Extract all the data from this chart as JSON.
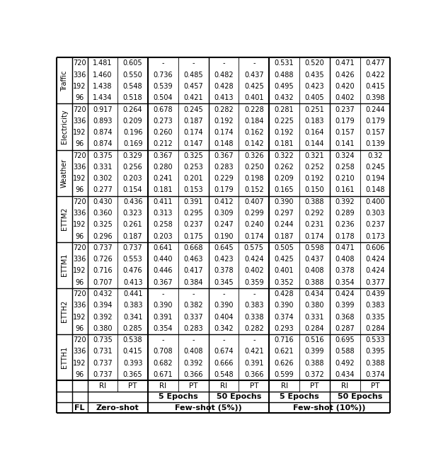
{
  "row_groups": [
    {
      "label": "ETTH1",
      "rows": [
        {
          "fl": "96",
          "zs_ri": "0.737",
          "zs_pt": "0.365",
          "fs5_5e_ri": "0.671",
          "fs5_5e_pt": "0.366",
          "fs5_50e_ri": "0.548",
          "fs5_50e_pt": "0.366",
          "fs10_5e_ri": "0.599",
          "fs10_5e_pt": "0.372",
          "fs10_50e_ri": "0.434",
          "fs10_50e_pt": "0.374"
        },
        {
          "fl": "192",
          "zs_ri": "0.737",
          "zs_pt": "0.393",
          "fs5_5e_ri": "0.682",
          "fs5_5e_pt": "0.392",
          "fs5_50e_ri": "0.666",
          "fs5_50e_pt": "0.391",
          "fs10_5e_ri": "0.626",
          "fs10_5e_pt": "0.388",
          "fs10_50e_ri": "0.492",
          "fs10_50e_pt": "0.388"
        },
        {
          "fl": "336",
          "zs_ri": "0.731",
          "zs_pt": "0.415",
          "fs5_5e_ri": "0.708",
          "fs5_5e_pt": "0.408",
          "fs5_50e_ri": "0.674",
          "fs5_50e_pt": "0.421",
          "fs10_5e_ri": "0.621",
          "fs10_5e_pt": "0.399",
          "fs10_50e_ri": "0.588",
          "fs10_50e_pt": "0.395"
        },
        {
          "fl": "720",
          "zs_ri": "0.735",
          "zs_pt": "0.538",
          "fs5_5e_ri": "-",
          "fs5_5e_pt": "-",
          "fs5_50e_ri": "-",
          "fs5_50e_pt": "-",
          "fs10_5e_ri": "0.716",
          "fs10_5e_pt": "0.516",
          "fs10_50e_ri": "0.695",
          "fs10_50e_pt": "0.533"
        }
      ]
    },
    {
      "label": "ETTH2",
      "rows": [
        {
          "fl": "96",
          "zs_ri": "0.380",
          "zs_pt": "0.285",
          "fs5_5e_ri": "0.354",
          "fs5_5e_pt": "0.283",
          "fs5_50e_ri": "0.342",
          "fs5_50e_pt": "0.282",
          "fs10_5e_ri": "0.293",
          "fs10_5e_pt": "0.284",
          "fs10_50e_ri": "0.287",
          "fs10_50e_pt": "0.284"
        },
        {
          "fl": "192",
          "zs_ri": "0.392",
          "zs_pt": "0.341",
          "fs5_5e_ri": "0.391",
          "fs5_5e_pt": "0.337",
          "fs5_50e_ri": "0.404",
          "fs5_50e_pt": "0.338",
          "fs10_5e_ri": "0.374",
          "fs10_5e_pt": "0.331",
          "fs10_50e_ri": "0.368",
          "fs10_50e_pt": "0.335"
        },
        {
          "fl": "336",
          "zs_ri": "0.394",
          "zs_pt": "0.383",
          "fs5_5e_ri": "0.390",
          "fs5_5e_pt": "0.382",
          "fs5_50e_ri": "0.390",
          "fs5_50e_pt": "0.383",
          "fs10_5e_ri": "0.390",
          "fs10_5e_pt": "0.380",
          "fs10_50e_ri": "0.399",
          "fs10_50e_pt": "0.383"
        },
        {
          "fl": "720",
          "zs_ri": "0.432",
          "zs_pt": "0.441",
          "fs5_5e_ri": "-",
          "fs5_5e_pt": "-",
          "fs5_50e_ri": "-",
          "fs5_50e_pt": "-",
          "fs10_5e_ri": "0.428",
          "fs10_5e_pt": "0.434",
          "fs10_50e_ri": "0.424",
          "fs10_50e_pt": "0.439"
        }
      ]
    },
    {
      "label": "ETTM1",
      "rows": [
        {
          "fl": "96",
          "zs_ri": "0.707",
          "zs_pt": "0.413",
          "fs5_5e_ri": "0.367",
          "fs5_5e_pt": "0.384",
          "fs5_50e_ri": "0.345",
          "fs5_50e_pt": "0.359",
          "fs10_5e_ri": "0.352",
          "fs10_5e_pt": "0.388",
          "fs10_50e_ri": "0.354",
          "fs10_50e_pt": "0.377"
        },
        {
          "fl": "192",
          "zs_ri": "0.716",
          "zs_pt": "0.476",
          "fs5_5e_ri": "0.446",
          "fs5_5e_pt": "0.417",
          "fs5_50e_ri": "0.378",
          "fs5_50e_pt": "0.402",
          "fs10_5e_ri": "0.401",
          "fs10_5e_pt": "0.408",
          "fs10_50e_ri": "0.378",
          "fs10_50e_pt": "0.424"
        },
        {
          "fl": "336",
          "zs_ri": "0.726",
          "zs_pt": "0.553",
          "fs5_5e_ri": "0.440",
          "fs5_5e_pt": "0.463",
          "fs5_50e_ri": "0.423",
          "fs5_50e_pt": "0.424",
          "fs10_5e_ri": "0.425",
          "fs10_5e_pt": "0.437",
          "fs10_50e_ri": "0.408",
          "fs10_50e_pt": "0.424"
        },
        {
          "fl": "720",
          "zs_ri": "0.737",
          "zs_pt": "0.737",
          "fs5_5e_ri": "0.641",
          "fs5_5e_pt": "0.668",
          "fs5_50e_ri": "0.645",
          "fs5_50e_pt": "0.575",
          "fs10_5e_ri": "0.505",
          "fs10_5e_pt": "0.598",
          "fs10_50e_ri": "0.471",
          "fs10_50e_pt": "0.606"
        }
      ]
    },
    {
      "label": "ETTM2",
      "rows": [
        {
          "fl": "96",
          "zs_ri": "0.296",
          "zs_pt": "0.187",
          "fs5_5e_ri": "0.203",
          "fs5_5e_pt": "0.175",
          "fs5_50e_ri": "0.190",
          "fs5_50e_pt": "0.174",
          "fs10_5e_ri": "0.187",
          "fs10_5e_pt": "0.174",
          "fs10_50e_ri": "0.178",
          "fs10_50e_pt": "0.173"
        },
        {
          "fl": "192",
          "zs_ri": "0.325",
          "zs_pt": "0.261",
          "fs5_5e_ri": "0.258",
          "fs5_5e_pt": "0.237",
          "fs5_50e_ri": "0.247",
          "fs5_50e_pt": "0.240",
          "fs10_5e_ri": "0.244",
          "fs10_5e_pt": "0.231",
          "fs10_50e_ri": "0.236",
          "fs10_50e_pt": "0.237"
        },
        {
          "fl": "336",
          "zs_ri": "0.360",
          "zs_pt": "0.323",
          "fs5_5e_ri": "0.313",
          "fs5_5e_pt": "0.295",
          "fs5_50e_ri": "0.309",
          "fs5_50e_pt": "0.299",
          "fs10_5e_ri": "0.297",
          "fs10_5e_pt": "0.292",
          "fs10_50e_ri": "0.289",
          "fs10_50e_pt": "0.303"
        },
        {
          "fl": "720",
          "zs_ri": "0.430",
          "zs_pt": "0.436",
          "fs5_5e_ri": "0.411",
          "fs5_5e_pt": "0.391",
          "fs5_50e_ri": "0.412",
          "fs5_50e_pt": "0.407",
          "fs10_5e_ri": "0.390",
          "fs10_5e_pt": "0.388",
          "fs10_50e_ri": "0.392",
          "fs10_50e_pt": "0.400"
        }
      ]
    },
    {
      "label": "Weather",
      "rows": [
        {
          "fl": "96",
          "zs_ri": "0.277",
          "zs_pt": "0.154",
          "fs5_5e_ri": "0.181",
          "fs5_5e_pt": "0.153",
          "fs5_50e_ri": "0.179",
          "fs5_50e_pt": "0.152",
          "fs10_5e_ri": "0.165",
          "fs10_5e_pt": "0.150",
          "fs10_50e_ri": "0.161",
          "fs10_50e_pt": "0.148"
        },
        {
          "fl": "192",
          "zs_ri": "0.302",
          "zs_pt": "0.203",
          "fs5_5e_ri": "0.241",
          "fs5_5e_pt": "0.201",
          "fs5_50e_ri": "0.229",
          "fs5_50e_pt": "0.198",
          "fs10_5e_ri": "0.209",
          "fs10_5e_pt": "0.192",
          "fs10_50e_ri": "0.210",
          "fs10_50e_pt": "0.194"
        },
        {
          "fl": "336",
          "zs_ri": "0.331",
          "zs_pt": "0.256",
          "fs5_5e_ri": "0.280",
          "fs5_5e_pt": "0.253",
          "fs5_50e_ri": "0.283",
          "fs5_50e_pt": "0.250",
          "fs10_5e_ri": "0.262",
          "fs10_5e_pt": "0.252",
          "fs10_50e_ri": "0.258",
          "fs10_50e_pt": "0.245"
        },
        {
          "fl": "720",
          "zs_ri": "0.375",
          "zs_pt": "0.329",
          "fs5_5e_ri": "0.367",
          "fs5_5e_pt": "0.325",
          "fs5_50e_ri": "0.367",
          "fs5_50e_pt": "0.326",
          "fs10_5e_ri": "0.322",
          "fs10_5e_pt": "0.321",
          "fs10_50e_ri": "0.324",
          "fs10_50e_pt": "0.32"
        }
      ]
    },
    {
      "label": "Electricity",
      "rows": [
        {
          "fl": "96",
          "zs_ri": "0.874",
          "zs_pt": "0.169",
          "fs5_5e_ri": "0.212",
          "fs5_5e_pt": "0.147",
          "fs5_50e_ri": "0.148",
          "fs5_50e_pt": "0.142",
          "fs10_5e_ri": "0.181",
          "fs10_5e_pt": "0.144",
          "fs10_50e_ri": "0.141",
          "fs10_50e_pt": "0.139"
        },
        {
          "fl": "192",
          "zs_ri": "0.874",
          "zs_pt": "0.196",
          "fs5_5e_ri": "0.260",
          "fs5_5e_pt": "0.174",
          "fs5_50e_ri": "0.174",
          "fs5_50e_pt": "0.162",
          "fs10_5e_ri": "0.192",
          "fs10_5e_pt": "0.164",
          "fs10_50e_ri": "0.157",
          "fs10_50e_pt": "0.157"
        },
        {
          "fl": "336",
          "zs_ri": "0.893",
          "zs_pt": "0.209",
          "fs5_5e_ri": "0.273",
          "fs5_5e_pt": "0.187",
          "fs5_50e_ri": "0.192",
          "fs5_50e_pt": "0.184",
          "fs10_5e_ri": "0.225",
          "fs10_5e_pt": "0.183",
          "fs10_50e_ri": "0.179",
          "fs10_50e_pt": "0.179"
        },
        {
          "fl": "720",
          "zs_ri": "0.917",
          "zs_pt": "0.264",
          "fs5_5e_ri": "0.678",
          "fs5_5e_pt": "0.245",
          "fs5_50e_ri": "0.282",
          "fs5_50e_pt": "0.228",
          "fs10_5e_ri": "0.281",
          "fs10_5e_pt": "0.251",
          "fs10_50e_ri": "0.237",
          "fs10_50e_pt": "0.244"
        }
      ]
    },
    {
      "label": "Traffic",
      "rows": [
        {
          "fl": "96",
          "zs_ri": "1.434",
          "zs_pt": "0.518",
          "fs5_5e_ri": "0.504",
          "fs5_5e_pt": "0.421",
          "fs5_50e_ri": "0.413",
          "fs5_50e_pt": "0.401",
          "fs10_5e_ri": "0.432",
          "fs10_5e_pt": "0.405",
          "fs10_50e_ri": "0.402",
          "fs10_50e_pt": "0.398"
        },
        {
          "fl": "192",
          "zs_ri": "1.438",
          "zs_pt": "0.548",
          "fs5_5e_ri": "0.539",
          "fs5_5e_pt": "0.457",
          "fs5_50e_ri": "0.428",
          "fs5_50e_pt": "0.425",
          "fs10_5e_ri": "0.495",
          "fs10_5e_pt": "0.423",
          "fs10_50e_ri": "0.420",
          "fs10_50e_pt": "0.415"
        },
        {
          "fl": "336",
          "zs_ri": "1.460",
          "zs_pt": "0.550",
          "fs5_5e_ri": "0.736",
          "fs5_5e_pt": "0.485",
          "fs5_50e_ri": "0.482",
          "fs5_50e_pt": "0.437",
          "fs10_5e_ri": "0.488",
          "fs10_5e_pt": "0.435",
          "fs10_50e_ri": "0.426",
          "fs10_50e_pt": "0.422"
        },
        {
          "fl": "720",
          "zs_ri": "1.481",
          "zs_pt": "0.605",
          "fs5_5e_ri": "-",
          "fs5_5e_pt": "-",
          "fs5_50e_ri": "-",
          "fs5_50e_pt": "-",
          "fs10_5e_ri": "0.531",
          "fs10_5e_pt": "0.520",
          "fs10_50e_ri": "0.471",
          "fs10_50e_pt": "0.477"
        }
      ]
    }
  ],
  "figsize": [
    6.16,
    6.58
  ],
  "dpi": 100,
  "fs_header1": 8.0,
  "fs_header2": 8.0,
  "fs_header3": 7.5,
  "fs_data": 7.0,
  "fs_group": 7.0
}
